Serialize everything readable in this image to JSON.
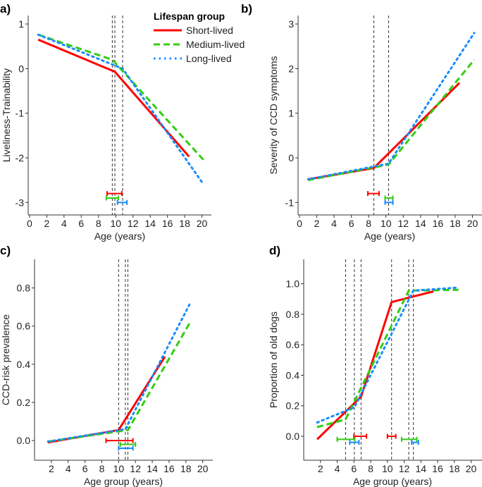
{
  "legend": {
    "title": "Lifespan group",
    "entries": [
      {
        "name": "Short-lived",
        "color": "#ff0000",
        "style": "solid"
      },
      {
        "name": "Medium-lived",
        "color": "#33cc11",
        "style": "dashed"
      },
      {
        "name": "Long-lived",
        "color": "#1a8cff",
        "style": "dotted"
      }
    ],
    "placement": "top-center"
  },
  "chart_data": [
    {
      "type": "line",
      "panel_label": "a)",
      "xlabel": "Age (years)",
      "ylabel": "Liveliness-Trainability",
      "xlim": [
        -0.16,
        21.1
      ],
      "ylim": [
        -3.28,
        1.19
      ],
      "xticks": [
        0,
        2,
        4,
        6,
        8,
        10,
        12,
        14,
        16,
        18,
        20
      ],
      "yticks": [
        1,
        0,
        -1,
        -2,
        -3
      ],
      "ytick_labels": [
        "1",
        "0",
        "-1",
        "-2",
        "-3"
      ],
      "vlines": [
        9.6,
        9.9,
        10.8
      ],
      "series": [
        {
          "name": "Short-lived",
          "x": [
            1,
            9.9,
            18.5
          ],
          "y": [
            0.65,
            -0.07,
            -1.97
          ],
          "ci": [
            {
              "lo": 9.0,
              "hi": 10.7,
              "y": -2.8
            }
          ]
        },
        {
          "name": "Medium-lived",
          "x": [
            1,
            9.6,
            20.2
          ],
          "y": [
            0.76,
            0.2,
            -2.05
          ],
          "ci": [
            {
              "lo": 8.9,
              "hi": 10.3,
              "y": -2.9
            }
          ]
        },
        {
          "name": "Long-lived",
          "x": [
            1,
            10.8,
            20.2
          ],
          "y": [
            0.76,
            0.0,
            -2.6
          ],
          "ci": [
            {
              "lo": 10.2,
              "hi": 11.3,
              "y": -3.0
            }
          ]
        }
      ]
    },
    {
      "type": "line",
      "panel_label": "b)",
      "xlabel": "Age (years)",
      "ylabel": "Severity of CCD symptoms",
      "xlim": [
        -0.16,
        21.1
      ],
      "ylim": [
        -1.28,
        3.19
      ],
      "xticks": [
        0,
        2,
        4,
        6,
        8,
        10,
        12,
        14,
        16,
        18,
        20
      ],
      "yticks": [
        3,
        2,
        1,
        0,
        -1
      ],
      "ytick_labels": [
        "3",
        "2",
        "1",
        "0",
        "-1"
      ],
      "vlines": [
        8.6,
        10.3
      ],
      "series": [
        {
          "name": "Short-lived",
          "x": [
            1,
            8.6,
            18.5
          ],
          "y": [
            -0.48,
            -0.23,
            1.68
          ],
          "ci": [
            {
              "lo": 7.9,
              "hi": 9.2,
              "y": -0.8
            }
          ]
        },
        {
          "name": "Medium-lived",
          "x": [
            1,
            10.3,
            20.2
          ],
          "y": [
            -0.5,
            -0.15,
            2.2
          ],
          "ci": [
            {
              "lo": 9.9,
              "hi": 10.8,
              "y": -0.9
            }
          ]
        },
        {
          "name": "Long-lived",
          "x": [
            1,
            10.3,
            20.2
          ],
          "y": [
            -0.48,
            -0.13,
            2.8
          ],
          "ci": [
            {
              "lo": 9.9,
              "hi": 10.8,
              "y": -1.0
            }
          ]
        }
      ]
    },
    {
      "type": "line",
      "panel_label": "c)",
      "xlabel": "Age group (years)",
      "ylabel": "CCD-risk prevalence",
      "xlim": [
        0,
        21.2
      ],
      "ylim": [
        -0.103,
        0.95
      ],
      "xticks": [
        2,
        4,
        6,
        8,
        10,
        12,
        14,
        16,
        18,
        20
      ],
      "yticks": [
        0,
        0.2,
        0.4,
        0.6,
        0.8
      ],
      "ytick_labels": [
        "0.0",
        "0.2",
        "0.4",
        "0.6",
        "0.8"
      ],
      "vlines": [
        10.0,
        10.8,
        11.1
      ],
      "series": [
        {
          "name": "Short-lived",
          "x": [
            1.6,
            10.0,
            15.5
          ],
          "y": [
            -0.01,
            0.055,
            0.44
          ],
          "ci": [
            {
              "lo": 8.5,
              "hi": 11.7,
              "y": 0.0
            }
          ]
        },
        {
          "name": "Medium-lived",
          "x": [
            1.6,
            11.1,
            18.5
          ],
          "y": [
            -0.005,
            0.055,
            0.62
          ],
          "ci": [
            {
              "lo": 10.2,
              "hi": 12.0,
              "y": -0.02
            }
          ]
        },
        {
          "name": "Long-lived",
          "x": [
            1.6,
            10.8,
            18.5
          ],
          "y": [
            -0.005,
            0.06,
            0.72
          ],
          "ci": [
            {
              "lo": 10.0,
              "hi": 11.7,
              "y": -0.04
            }
          ]
        }
      ]
    },
    {
      "type": "line",
      "panel_label": "d)",
      "xlabel": "Age group (years)",
      "ylabel": "Proportion of old dogs",
      "xlim": [
        0,
        21.3
      ],
      "ylim": [
        -0.157,
        1.16
      ],
      "xticks": [
        2,
        4,
        6,
        8,
        10,
        12,
        14,
        16,
        18,
        20
      ],
      "yticks": [
        0,
        0.2,
        0.4,
        0.6,
        0.8,
        1.0
      ],
      "ytick_labels": [
        "0.0",
        "0.2",
        "0.4",
        "0.6",
        "0.8",
        "1.0"
      ],
      "vlines": [
        5.0,
        6.05,
        6.85,
        10.5,
        12.55,
        13.1
      ],
      "series": [
        {
          "name": "Short-lived",
          "x": [
            1.6,
            6.85,
            10.5,
            15.5
          ],
          "y": [
            -0.02,
            0.26,
            0.88,
            0.95
          ],
          "ci": [
            {
              "lo": 6.0,
              "hi": 7.5,
              "y": 0.0
            },
            {
              "lo": 10.0,
              "hi": 11.0,
              "y": 0.0
            }
          ]
        },
        {
          "name": "Medium-lived",
          "x": [
            1.6,
            5.0,
            12.55,
            18.5
          ],
          "y": [
            0.06,
            0.11,
            0.955,
            0.96
          ],
          "ci": [
            {
              "lo": 4.0,
              "hi": 6.1,
              "y": -0.02
            },
            {
              "lo": 11.7,
              "hi": 13.5,
              "y": -0.02
            }
          ]
        },
        {
          "name": "Long-lived",
          "x": [
            1.6,
            6.05,
            13.1,
            18.5
          ],
          "y": [
            0.09,
            0.19,
            0.955,
            0.975
          ],
          "ci": [
            {
              "lo": 5.5,
              "hi": 6.6,
              "y": -0.04
            },
            {
              "lo": 12.9,
              "hi": 13.7,
              "y": -0.04
            }
          ]
        }
      ]
    }
  ]
}
